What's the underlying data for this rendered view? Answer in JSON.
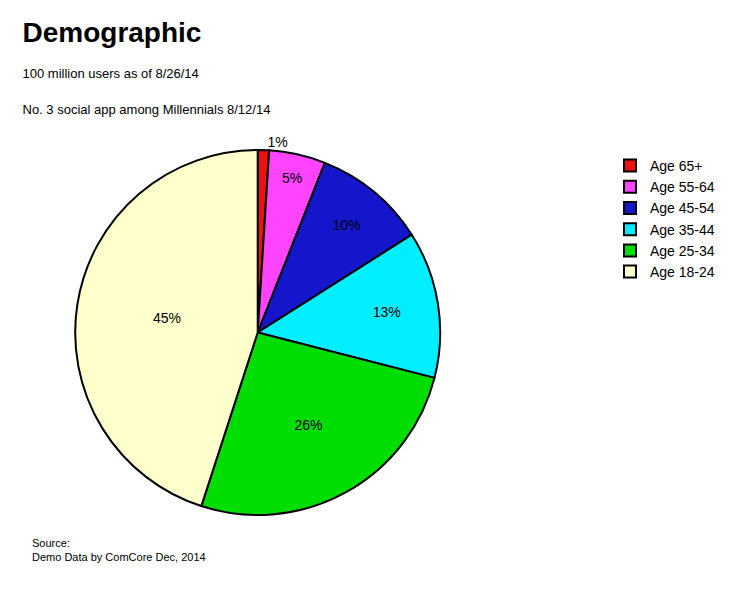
{
  "chart_data": {
    "type": "pie",
    "title": "Demographic",
    "subtitle": [
      "100 million users as of 8/26/14",
      "No. 3 social app among Millennials 8/12/14"
    ],
    "annotations": [
      "Source:\nDemo Data by ComCore Dec, 2014"
    ],
    "categories": [
      "Age 65+",
      "Age 55-64",
      "Age 45-54",
      "Age 35-44",
      "Age 25-34",
      "Age 18-24"
    ],
    "values": [
      1,
      5,
      10,
      13,
      26,
      45
    ],
    "value_labels": [
      "1%",
      "5%",
      "10%",
      "13%",
      "26%",
      "45%"
    ],
    "colors": [
      "#EE1111",
      "#FF44FF",
      "#1515CC",
      "#00EEFF",
      "#00DD00",
      "#FFFFCC"
    ],
    "data_labels": true,
    "legend": "upper right"
  }
}
